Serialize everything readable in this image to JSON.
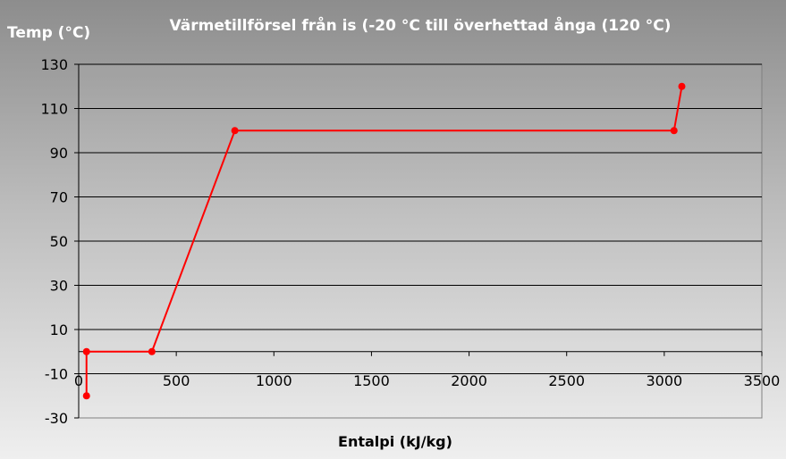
{
  "chart_data": {
    "type": "line",
    "title": "Värmetillförsel från is (-20 °C till överhettad ånga (120 °C)",
    "xlabel": "Entalpi (kJ/kg)",
    "ylabel": "Temp (°C)",
    "xlim": [
      0,
      3500
    ],
    "ylim": [
      -30,
      130
    ],
    "x_ticks": [
      0,
      500,
      1000,
      1500,
      2000,
      2500,
      3000,
      3500
    ],
    "y_ticks": [
      -30,
      -10,
      10,
      30,
      50,
      70,
      90,
      110,
      130
    ],
    "grid": true,
    "legend": "none",
    "series": [
      {
        "color": "#ff0000",
        "points": [
          {
            "x": 40,
            "y": -20
          },
          {
            "x": 40,
            "y": 0
          },
          {
            "x": 375,
            "y": 0
          },
          {
            "x": 800,
            "y": 100
          },
          {
            "x": 3050,
            "y": 100
          },
          {
            "x": 3090,
            "y": 120
          }
        ]
      }
    ]
  }
}
